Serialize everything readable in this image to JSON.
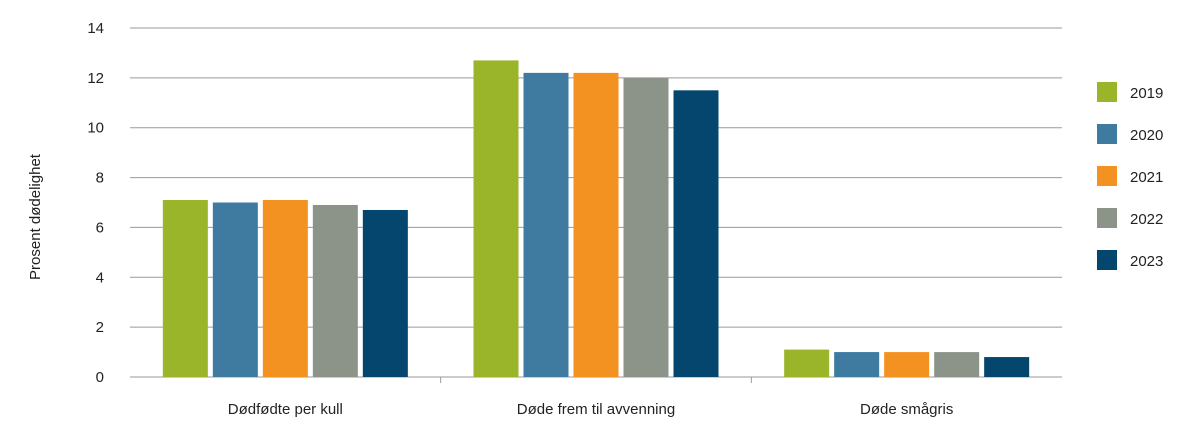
{
  "chart_data": {
    "type": "bar",
    "title": "",
    "xlabel": "",
    "ylabel": "Prosent dødelighet",
    "ylim": [
      0,
      14
    ],
    "yticks": [
      0,
      2,
      4,
      6,
      8,
      10,
      12,
      14
    ],
    "grid": true,
    "legend": "right",
    "categories": [
      "Dødfødte per kull",
      "Døde frem til avvenning",
      "Døde smågris"
    ],
    "series": [
      {
        "name": "2019",
        "color": "#9bb52a",
        "values": [
          7.1,
          12.7,
          1.1
        ]
      },
      {
        "name": "2020",
        "color": "#3f7aa1",
        "values": [
          7.0,
          12.2,
          1.0
        ]
      },
      {
        "name": "2021",
        "color": "#f39220",
        "values": [
          7.1,
          12.2,
          1.0
        ]
      },
      {
        "name": "2022",
        "color": "#8c948a",
        "values": [
          6.9,
          12.0,
          1.0
        ]
      },
      {
        "name": "2023",
        "color": "#04466d",
        "values": [
          6.7,
          11.5,
          0.8
        ]
      }
    ]
  }
}
